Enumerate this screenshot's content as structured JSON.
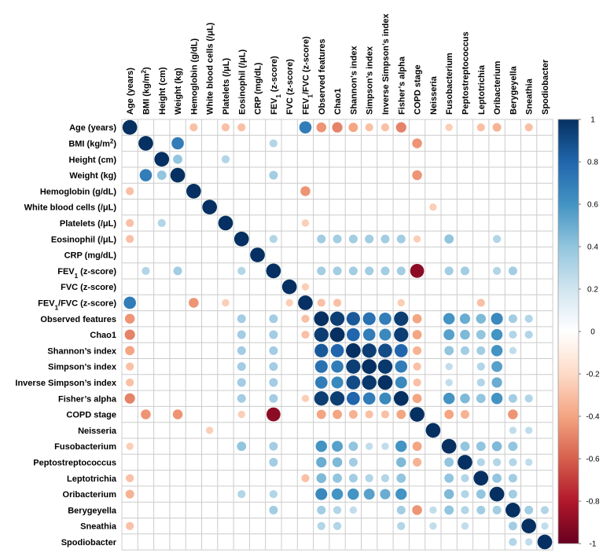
{
  "chart_data": {
    "type": "heatmap",
    "subtype": "correlation-circle-matrix",
    "variables": [
      "Age (years)",
      "BMI (kg/m²)",
      "Height (cm)",
      "Weight (kg)",
      "Hemoglobin (g/dL)",
      "White blood cells (/μL)",
      "Platelets (/μL)",
      "Eosinophil (/μL)",
      "CRP (mg/dL)",
      "FEV₁ (z-score)",
      "FVC (z-score)",
      "FEV₁/FVC (z-score)",
      "Observed features",
      "Chao1",
      "Shannon's index",
      "Simpson's index",
      "Inverse Simpson's index",
      "Fisher's alpha",
      "COPD stage",
      "Neisseria",
      "Fusobacterium",
      "Peptostreptococcus",
      "Leptotrichia",
      "Oribacterium",
      "Berygeyella",
      "Sneathia",
      "Spodiobacter"
    ],
    "row_labels": [
      {
        "main": "Age (years)"
      },
      {
        "main": "BMI (kg/m",
        "sup": "2",
        "tail": ")"
      },
      {
        "main": "Height (cm)"
      },
      {
        "main": "Weight (kg)"
      },
      {
        "main": "Hemoglobin (g/dL)"
      },
      {
        "main": "White blood cells (/μL)"
      },
      {
        "main": "Platelets (/μL)"
      },
      {
        "main": "Eosinophil (/μL)"
      },
      {
        "main": "CRP (mg/dL)"
      },
      {
        "main": "FEV",
        "sub": "1",
        "tail": " (z-score)"
      },
      {
        "main": "FVC (z-score)"
      },
      {
        "main": "FEV",
        "sub": "1",
        "tail": "/FVC (z-score)"
      },
      {
        "main": "Observed features"
      },
      {
        "main": "Chao1"
      },
      {
        "main": "Shannon’s index"
      },
      {
        "main": "Simpson’s index"
      },
      {
        "main": "Inverse Simpson’s index"
      },
      {
        "main": "Fisher’s alpha"
      },
      {
        "main": "COPD stage"
      },
      {
        "main": "Neisseria"
      },
      {
        "main": "Fusobacterium"
      },
      {
        "main": "Peptostreptococcus"
      },
      {
        "main": "Leptotrichia"
      },
      {
        "main": "Oribacterium"
      },
      {
        "main": "Berygeyella"
      },
      {
        "main": "Sneathia"
      },
      {
        "main": "Spodiobacter"
      }
    ],
    "column_labels": [
      {
        "main": "Age (years)"
      },
      {
        "main": "BMI (kg/m",
        "sup": "2",
        "tail": ")"
      },
      {
        "main": "Height (cm)"
      },
      {
        "main": "Weight (kg)"
      },
      {
        "main": "Hemoglobin (g/dL)"
      },
      {
        "main": "White blood cells (/μL)"
      },
      {
        "main": "Platelets (/μL)"
      },
      {
        "main": "Eosinophil (/μL)"
      },
      {
        "main": "CRP (mg/dL)"
      },
      {
        "main": "FEV",
        "sub": "1",
        "tail": " (z-score)"
      },
      {
        "main": "FVC (z-score)"
      },
      {
        "main": "FEV",
        "sub": "1",
        "tail": "/FVC (z-score)"
      },
      {
        "main": "Observed features"
      },
      {
        "main": "Chao1"
      },
      {
        "main": "Shannon’s index"
      },
      {
        "main": "Simpson’s index"
      },
      {
        "main": "Inverse Simpson’s index"
      },
      {
        "main": "Fisher’s alpha"
      },
      {
        "main": "COPD stage"
      },
      {
        "main": "Neisseria"
      },
      {
        "main": "Fusobacterium"
      },
      {
        "main": "Peptostreptococcus"
      },
      {
        "main": "Leptotrichia"
      },
      {
        "main": "Oribacterium"
      },
      {
        "main": "Berygeyella"
      },
      {
        "main": "Sneathia"
      },
      {
        "main": "Spodiobacter"
      }
    ],
    "correlations": [
      [
        0,
        4,
        -0.3
      ],
      [
        0,
        6,
        -0.3
      ],
      [
        0,
        7,
        -0.3
      ],
      [
        0,
        11,
        0.7
      ],
      [
        0,
        12,
        -0.45
      ],
      [
        0,
        13,
        -0.5
      ],
      [
        0,
        14,
        -0.4
      ],
      [
        0,
        15,
        -0.3
      ],
      [
        0,
        16,
        -0.3
      ],
      [
        0,
        17,
        -0.5
      ],
      [
        0,
        20,
        -0.25
      ],
      [
        0,
        22,
        -0.3
      ],
      [
        0,
        23,
        -0.35
      ],
      [
        0,
        25,
        -0.3
      ],
      [
        1,
        3,
        0.7
      ],
      [
        1,
        9,
        0.3
      ],
      [
        1,
        18,
        -0.45
      ],
      [
        2,
        3,
        0.4
      ],
      [
        2,
        6,
        0.3
      ],
      [
        3,
        9,
        0.35
      ],
      [
        3,
        18,
        -0.45
      ],
      [
        4,
        11,
        -0.45
      ],
      [
        5,
        19,
        -0.25
      ],
      [
        6,
        11,
        -0.25
      ],
      [
        7,
        9,
        0.3
      ],
      [
        7,
        12,
        0.35
      ],
      [
        7,
        13,
        0.35
      ],
      [
        7,
        14,
        0.35
      ],
      [
        7,
        15,
        0.35
      ],
      [
        7,
        16,
        0.35
      ],
      [
        7,
        17,
        0.35
      ],
      [
        7,
        18,
        -0.25
      ],
      [
        7,
        20,
        0.4
      ],
      [
        7,
        23,
        0.3
      ],
      [
        9,
        12,
        0.35
      ],
      [
        9,
        13,
        0.35
      ],
      [
        9,
        14,
        0.35
      ],
      [
        9,
        15,
        0.35
      ],
      [
        9,
        16,
        0.35
      ],
      [
        9,
        17,
        0.35
      ],
      [
        9,
        18,
        -0.9
      ],
      [
        9,
        20,
        0.35
      ],
      [
        9,
        21,
        0.35
      ],
      [
        9,
        23,
        0.3
      ],
      [
        9,
        24,
        0.35
      ],
      [
        10,
        11,
        -0.25
      ],
      [
        11,
        12,
        -0.3
      ],
      [
        11,
        13,
        -0.3
      ],
      [
        11,
        17,
        -0.25
      ],
      [
        11,
        22,
        -0.3
      ],
      [
        12,
        13,
        0.95
      ],
      [
        12,
        14,
        0.85
      ],
      [
        12,
        15,
        0.75
      ],
      [
        12,
        16,
        0.7
      ],
      [
        12,
        17,
        0.95
      ],
      [
        12,
        18,
        -0.4
      ],
      [
        12,
        20,
        0.6
      ],
      [
        12,
        21,
        0.5
      ],
      [
        12,
        22,
        0.45
      ],
      [
        12,
        23,
        0.65
      ],
      [
        12,
        24,
        0.35
      ],
      [
        12,
        25,
        0.3
      ],
      [
        13,
        14,
        0.8
      ],
      [
        13,
        15,
        0.7
      ],
      [
        13,
        16,
        0.65
      ],
      [
        13,
        17,
        0.95
      ],
      [
        13,
        18,
        -0.4
      ],
      [
        13,
        20,
        0.55
      ],
      [
        13,
        21,
        0.45
      ],
      [
        13,
        22,
        0.4
      ],
      [
        13,
        23,
        0.6
      ],
      [
        13,
        24,
        0.3
      ],
      [
        13,
        25,
        0.3
      ],
      [
        14,
        15,
        0.95
      ],
      [
        14,
        16,
        0.9
      ],
      [
        14,
        17,
        0.8
      ],
      [
        14,
        18,
        -0.35
      ],
      [
        14,
        20,
        0.4
      ],
      [
        14,
        21,
        0.35
      ],
      [
        14,
        22,
        0.35
      ],
      [
        14,
        23,
        0.6
      ],
      [
        14,
        24,
        0.25
      ],
      [
        15,
        16,
        0.97
      ],
      [
        15,
        17,
        0.7
      ],
      [
        15,
        18,
        -0.3
      ],
      [
        15,
        20,
        0.25
      ],
      [
        15,
        22,
        0.3
      ],
      [
        15,
        23,
        0.55
      ],
      [
        16,
        17,
        0.65
      ],
      [
        16,
        18,
        -0.3
      ],
      [
        16,
        20,
        0.25
      ],
      [
        16,
        22,
        0.3
      ],
      [
        16,
        23,
        0.5
      ],
      [
        17,
        18,
        -0.4
      ],
      [
        17,
        20,
        0.6
      ],
      [
        17,
        21,
        0.45
      ],
      [
        17,
        22,
        0.4
      ],
      [
        17,
        23,
        0.6
      ],
      [
        17,
        24,
        0.35
      ],
      [
        17,
        25,
        0.3
      ],
      [
        18,
        20,
        -0.4
      ],
      [
        18,
        21,
        -0.35
      ],
      [
        18,
        24,
        -0.45
      ],
      [
        19,
        24,
        0.25
      ],
      [
        19,
        25,
        0.25
      ],
      [
        20,
        21,
        0.4
      ],
      [
        20,
        22,
        0.4
      ],
      [
        20,
        23,
        0.45
      ],
      [
        20,
        24,
        0.4
      ],
      [
        21,
        22,
        0.3
      ],
      [
        21,
        23,
        0.3
      ],
      [
        21,
        24,
        0.3
      ],
      [
        21,
        25,
        0.25
      ],
      [
        22,
        23,
        0.4
      ],
      [
        22,
        24,
        0.35
      ],
      [
        23,
        24,
        0.35
      ],
      [
        24,
        25,
        0.35
      ],
      [
        24,
        26,
        0.3
      ],
      [
        25,
        26,
        0.25
      ]
    ],
    "diagonal": 1.0,
    "color_scale": {
      "min": -1,
      "max": 1,
      "ticks": [
        "1",
        "0.8",
        "0.6",
        "0.4",
        "0.2",
        "0",
        "-0.2",
        "-0.4",
        "-0.6",
        "-0.8",
        "-1"
      ],
      "colors": [
        "#67001f",
        "#b2182b",
        "#d6604d",
        "#f4a582",
        "#fddbc7",
        "#ffffff",
        "#d1e5f0",
        "#92c5de",
        "#4393c3",
        "#2166ac",
        "#053061"
      ]
    },
    "grid_color": "#cccccc"
  }
}
